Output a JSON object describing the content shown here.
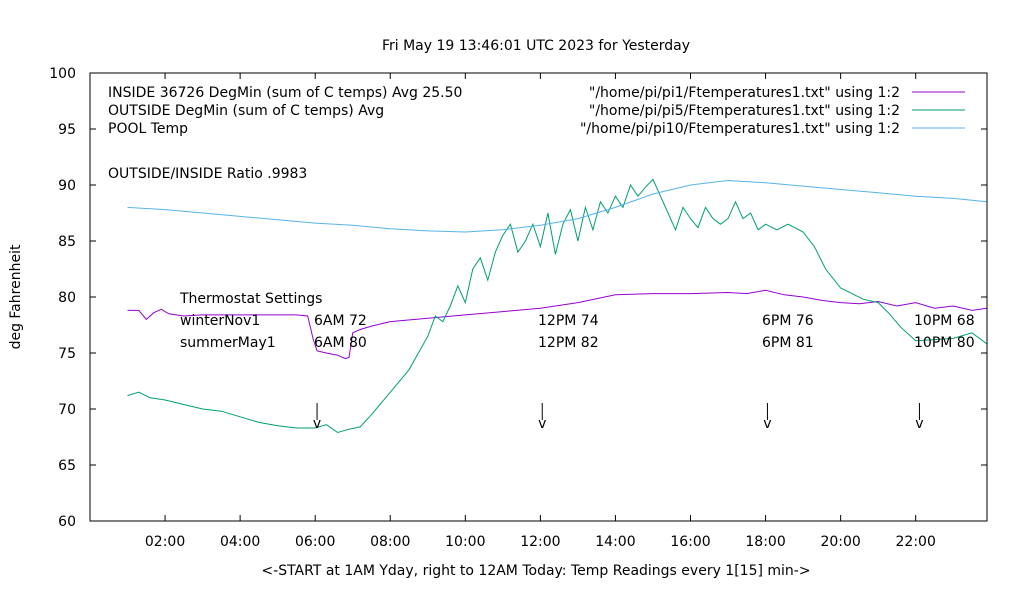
{
  "chart_data": {
    "type": "line",
    "title": "Fri May 19 13:46:01 UTC 2023 for Yesterday",
    "xlabel": "<-START at 1AM Yday, right to 12AM Today:  Temp Readings every 1[15] min->",
    "ylabel": "deg Fahrenheit",
    "xlim": [
      0.0,
      23.9
    ],
    "ylim": [
      60,
      100
    ],
    "grid": false,
    "legend_position": "top-right",
    "x_ticks": [
      2,
      4,
      6,
      8,
      10,
      12,
      14,
      16,
      18,
      20,
      22
    ],
    "x_tick_labels": [
      "02:00",
      "04:00",
      "06:00",
      "08:00",
      "10:00",
      "12:00",
      "14:00",
      "16:00",
      "18:00",
      "20:00",
      "22:00"
    ],
    "y_ticks": [
      60,
      65,
      70,
      75,
      80,
      85,
      90,
      95,
      100
    ],
    "y_tick_labels": [
      "60",
      "65",
      "70",
      "75",
      "80",
      "85",
      "90",
      "95",
      "100"
    ],
    "series": [
      {
        "name": "INSIDE 36726 DegMin (sum of C temps) Avg 25.50",
        "legend_source": "\"/home/pi/pi1/Ftemperatures1.txt\" using 1:2",
        "color": "#9400d3",
        "x": [
          1.0,
          1.3,
          1.5,
          1.7,
          1.9,
          2.1,
          2.5,
          3.0,
          4.0,
          5.0,
          5.5,
          5.8,
          5.95,
          6.05,
          6.3,
          6.6,
          6.8,
          6.9,
          7.0,
          7.2,
          7.5,
          8.0,
          9.0,
          10.0,
          11.0,
          12.0,
          13.0,
          14.0,
          15.0,
          16.0,
          17.0,
          17.5,
          18.0,
          18.5,
          19.0,
          19.5,
          20.0,
          20.5,
          21.0,
          21.5,
          22.0,
          22.5,
          23.0,
          23.5,
          23.9
        ],
        "y": [
          78.8,
          78.8,
          78.0,
          78.6,
          78.9,
          78.5,
          78.3,
          78.4,
          78.4,
          78.4,
          78.4,
          78.3,
          76.2,
          75.2,
          75.0,
          74.8,
          74.5,
          74.6,
          76.8,
          77.1,
          77.4,
          77.8,
          78.1,
          78.4,
          78.7,
          79.0,
          79.5,
          80.2,
          80.3,
          80.3,
          80.4,
          80.3,
          80.6,
          80.2,
          80.0,
          79.7,
          79.5,
          79.4,
          79.6,
          79.2,
          79.5,
          79.0,
          79.2,
          78.8,
          79.0
        ]
      },
      {
        "name": "OUTSIDE  DegMin (sum of C temps) Avg",
        "legend_source": "\"/home/pi/pi5/Ftemperatures1.txt\" using 1:2",
        "color": "#009e73",
        "x": [
          1.0,
          1.3,
          1.6,
          2.0,
          2.5,
          3.0,
          3.5,
          4.0,
          4.5,
          5.0,
          5.5,
          6.0,
          6.3,
          6.6,
          6.9,
          7.2,
          7.5,
          8.0,
          8.5,
          9.0,
          9.2,
          9.4,
          9.6,
          9.8,
          10.0,
          10.2,
          10.4,
          10.6,
          10.8,
          11.0,
          11.2,
          11.4,
          11.6,
          11.8,
          12.0,
          12.2,
          12.4,
          12.6,
          12.8,
          13.0,
          13.2,
          13.4,
          13.6,
          13.8,
          14.0,
          14.2,
          14.4,
          14.6,
          14.8,
          15.0,
          15.2,
          15.4,
          15.6,
          15.8,
          16.0,
          16.2,
          16.4,
          16.6,
          16.8,
          17.0,
          17.2,
          17.4,
          17.6,
          17.8,
          18.0,
          18.3,
          18.6,
          19.0,
          19.3,
          19.6,
          20.0,
          20.3,
          20.6,
          21.0,
          21.3,
          21.6,
          22.0,
          22.5,
          23.0,
          23.5,
          23.9
        ],
        "y": [
          71.2,
          71.5,
          71.0,
          70.8,
          70.4,
          70.0,
          69.8,
          69.3,
          68.8,
          68.5,
          68.3,
          68.3,
          68.6,
          67.9,
          68.2,
          68.4,
          69.5,
          71.5,
          73.5,
          76.5,
          78.3,
          77.8,
          79.2,
          81.0,
          79.5,
          82.5,
          83.5,
          81.5,
          84.0,
          85.5,
          86.5,
          84.0,
          85.0,
          86.5,
          84.5,
          87.5,
          83.8,
          86.5,
          87.8,
          85.0,
          88.0,
          86.0,
          88.5,
          87.5,
          89.0,
          88.0,
          90.0,
          89.0,
          89.8,
          90.5,
          89.0,
          87.5,
          86.0,
          88.0,
          87.0,
          86.2,
          88.0,
          87.0,
          86.5,
          87.0,
          88.5,
          87.0,
          87.5,
          86.0,
          86.5,
          86.0,
          86.5,
          85.8,
          84.5,
          82.5,
          80.8,
          80.3,
          79.8,
          79.5,
          78.5,
          77.3,
          76.1,
          76.2,
          76.3,
          76.8,
          75.8
        ]
      },
      {
        "name": "POOL Temp",
        "legend_source": "\"/home/pi/pi10/Ftemperatures1.txt\" using 1:2",
        "color": "#56b4e9",
        "x": [
          1.0,
          2.0,
          3.0,
          4.0,
          5.0,
          6.0,
          7.0,
          8.0,
          9.0,
          10.0,
          11.0,
          12.0,
          13.0,
          14.0,
          15.0,
          16.0,
          17.0,
          18.0,
          19.0,
          20.0,
          21.0,
          22.0,
          23.0,
          23.9
        ],
        "y": [
          88.0,
          87.8,
          87.5,
          87.2,
          86.9,
          86.6,
          86.4,
          86.1,
          85.9,
          85.8,
          86.0,
          86.4,
          87.0,
          88.0,
          89.2,
          90.0,
          90.4,
          90.2,
          89.9,
          89.6,
          89.3,
          89.0,
          88.8,
          88.5
        ]
      }
    ],
    "annotations": {
      "ratio_text": "OUTSIDE/INSIDE Ratio .9983",
      "thermostat_title": "Thermostat Settings",
      "rows": [
        {
          "label": "winterNov1",
          "settings": [
            "6AM 72",
            "12PM 74",
            "6PM 76",
            "10PM 68"
          ]
        },
        {
          "label": "summerMay1",
          "settings": [
            "6AM 80",
            "12PM 82",
            "6PM 81",
            "10PM 80"
          ]
        }
      ],
      "arrows_x": [
        6.05,
        12.05,
        18.05,
        22.1
      ],
      "arrow_glyph": "v"
    }
  }
}
